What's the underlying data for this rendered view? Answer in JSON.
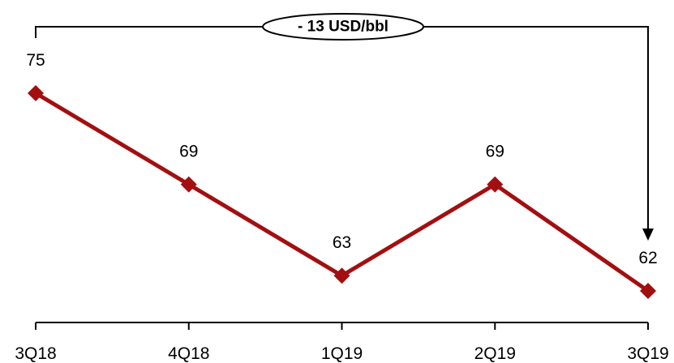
{
  "chart_data": {
    "type": "line",
    "categories": [
      "3Q18",
      "4Q18",
      "1Q19",
      "2Q19",
      "3Q19"
    ],
    "series": [
      {
        "values": [
          75,
          69,
          63,
          69,
          62
        ]
      }
    ],
    "data_labels": [
      "75",
      "69",
      "63",
      "69",
      "62"
    ],
    "annotation": "- 13 USD/bbl",
    "title": "",
    "xlabel": "",
    "ylabel": "",
    "grid": false,
    "legend": "none",
    "colors": {
      "line": "#a30f10",
      "axis": "#000000",
      "text": "#000000"
    }
  }
}
